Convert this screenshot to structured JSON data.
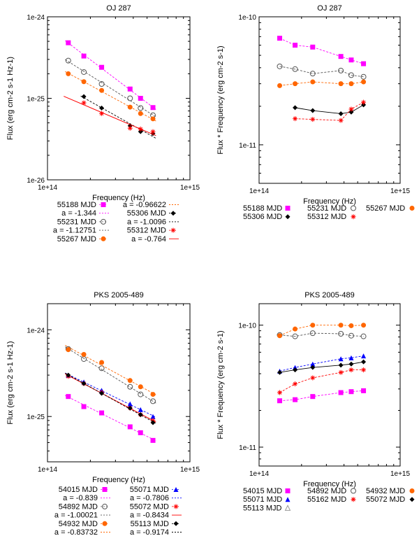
{
  "chart_data": [
    {
      "type": "scatter",
      "title": "OJ 287",
      "xlabel": "Frequency (Hz)",
      "ylabel": "Flux (erg cm-2 s-1 Hz-1)",
      "xlim": [
        100000000000000.0,
        1000000000000000.0
      ],
      "ylim": [
        1e-26,
        1e-24
      ],
      "xtick_labels": [
        "1e+14",
        "1e+15"
      ],
      "ytick_labels": [
        "1e-24",
        "1e-25",
        "1e-26"
      ],
      "series": [
        {
          "name": "55188 MJD",
          "color": "#ff00ff",
          "marker": "square-filled",
          "x": [
            140000000000000.0,
            180000000000000.0,
            240000000000000.0,
            380000000000000.0,
            450000000000000.0,
            550000000000000.0
          ],
          "y": [
            4.8e-25,
            3.3e-25,
            2.4e-25,
            1.3e-25,
            1e-25,
            7.7e-26
          ],
          "fit": "a = -1.344",
          "fit_color": "#ff00ff"
        },
        {
          "name": "55231 MJD",
          "color": "#555555",
          "marker": "circle-open",
          "x": [
            140000000000000.0,
            180000000000000.0,
            240000000000000.0,
            380000000000000.0,
            450000000000000.0,
            550000000000000.0
          ],
          "y": [
            2.9e-25,
            2.1e-25,
            1.5e-25,
            1e-25,
            7.6e-26,
            6.2e-26
          ],
          "fit": "a = -1.12751",
          "fit_color": "#555555"
        },
        {
          "name": "55267 MJD",
          "color": "#ff6600",
          "marker": "circle-filled",
          "x": [
            140000000000000.0,
            180000000000000.0,
            240000000000000.0,
            380000000000000.0,
            450000000000000.0,
            550000000000000.0
          ],
          "y": [
            2e-25,
            1.6e-25,
            1.25e-25,
            7.8e-26,
            6.5e-26,
            5.6e-26
          ],
          "fit": "a = -0.96622",
          "fit_color": "#ff6600"
        },
        {
          "name": "55306 MJD",
          "color": "#000000",
          "marker": "diamond-filled",
          "x": [
            180000000000000.0,
            240000000000000.0,
            380000000000000.0,
            450000000000000.0,
            550000000000000.0
          ],
          "y": [
            1.05e-25,
            7.6e-26,
            4.6e-26,
            3.9e-26,
            3.7e-26
          ],
          "fit": "a = -1.0096",
          "fit_color": "#000000"
        },
        {
          "name": "55312 MJD",
          "color": "#ff0000",
          "marker": "star",
          "x": [
            180000000000000.0,
            240000000000000.0,
            380000000000000.0,
            450000000000000.0,
            550000000000000.0
          ],
          "y": [
            8.8e-26,
            6.5e-26,
            4.3e-26,
            4.2e-26,
            3.9e-26
          ],
          "fit": "a = -0.764",
          "fit_color": "#ff0000"
        }
      ]
    },
    {
      "type": "scatter",
      "title": "OJ 287",
      "xlabel": "Frequency (Hz)",
      "ylabel": "Flux * Frequency (erg cm-2 s-1)",
      "xlim": [
        100000000000000.0,
        1000000000000000.0
      ],
      "ylim": [
        5e-12,
        1e-10
      ],
      "xtick_labels": [
        "1e+14",
        "1e+15"
      ],
      "ytick_labels": [
        "1e-10",
        "1e-11"
      ],
      "series": [
        {
          "name": "55188 MJD",
          "color": "#ff00ff",
          "marker": "square-filled",
          "x": [
            140000000000000.0,
            180000000000000.0,
            240000000000000.0,
            380000000000000.0,
            450000000000000.0,
            550000000000000.0
          ],
          "y": [
            6.8e-11,
            6e-11,
            5.8e-11,
            4.9e-11,
            4.6e-11,
            4.3e-11
          ]
        },
        {
          "name": "55231 MJD",
          "color": "#555555",
          "marker": "circle-open",
          "x": [
            140000000000000.0,
            180000000000000.0,
            240000000000000.0,
            380000000000000.0,
            450000000000000.0,
            550000000000000.0
          ],
          "y": [
            4.1e-11,
            3.9e-11,
            3.6e-11,
            3.8e-11,
            3.5e-11,
            3.4e-11
          ]
        },
        {
          "name": "55267 MJD",
          "color": "#ff6600",
          "marker": "circle-filled",
          "x": [
            140000000000000.0,
            180000000000000.0,
            240000000000000.0,
            380000000000000.0,
            450000000000000.0,
            550000000000000.0
          ],
          "y": [
            2.9e-11,
            3e-11,
            3.1e-11,
            3e-11,
            3e-11,
            3.1e-11
          ]
        },
        {
          "name": "55306 MJD",
          "color": "#000000",
          "marker": "diamond-filled",
          "x": [
            180000000000000.0,
            240000000000000.0,
            380000000000000.0,
            450000000000000.0,
            550000000000000.0
          ],
          "y": [
            1.95e-11,
            1.85e-11,
            1.75e-11,
            1.8e-11,
            2.05e-11
          ]
        },
        {
          "name": "55312 MJD",
          "color": "#ff0000",
          "marker": "star",
          "x": [
            180000000000000.0,
            240000000000000.0,
            380000000000000.0,
            450000000000000.0,
            550000000000000.0
          ],
          "y": [
            1.6e-11,
            1.58e-11,
            1.55e-11,
            1.9e-11,
            2.15e-11
          ]
        }
      ]
    },
    {
      "type": "scatter",
      "title": "PKS 2005-489",
      "xlabel": "Frequency (Hz)",
      "ylabel": "Flux (erg cm-2 s-1 Hz-1)",
      "xlim": [
        100000000000000.0,
        1000000000000000.0
      ],
      "ylim": [
        3e-26,
        2e-24
      ],
      "xtick_labels": [
        "1e+14",
        "1e+15"
      ],
      "ytick_labels": [
        "1e-24",
        "1e-25"
      ],
      "series": [
        {
          "name": "54015 MJD",
          "color": "#ff00ff",
          "marker": "square-filled",
          "x": [
            140000000000000.0,
            180000000000000.0,
            240000000000000.0,
            380000000000000.0,
            450000000000000.0,
            550000000000000.0
          ],
          "y": [
            1.7e-25,
            1.3e-25,
            1.1e-25,
            7.6e-26,
            6.5e-26,
            5.3e-26
          ],
          "fit": "a = -0.839",
          "fit_color": "#ff00ff"
        },
        {
          "name": "54892 MJD",
          "color": "#555555",
          "marker": "circle-open",
          "x": [
            140000000000000.0,
            180000000000000.0,
            240000000000000.0,
            380000000000000.0,
            450000000000000.0,
            550000000000000.0
          ],
          "y": [
            6e-25,
            4.6e-25,
            3.6e-25,
            2.2e-25,
            1.8e-25,
            1.5e-25
          ],
          "fit": "a = -1.00021",
          "fit_color": "#555555"
        },
        {
          "name": "54932 MJD",
          "color": "#ff6600",
          "marker": "circle-filled",
          "x": [
            140000000000000.0,
            180000000000000.0,
            240000000000000.0,
            380000000000000.0,
            450000000000000.0,
            550000000000000.0
          ],
          "y": [
            5.9e-25,
            5.2e-25,
            4.2e-25,
            2.6e-25,
            2.2e-25,
            1.8e-25
          ],
          "fit": "a = -0.83732",
          "fit_color": "#ff6600"
        },
        {
          "name": "55071 MJD",
          "color": "#0000ff",
          "marker": "triangle-filled",
          "x": [
            140000000000000.0,
            180000000000000.0,
            240000000000000.0,
            380000000000000.0,
            450000000000000.0,
            550000000000000.0
          ],
          "y": [
            3e-25,
            2.5e-25,
            2e-25,
            1.4e-25,
            1.2e-25,
            1e-25
          ],
          "fit": "a = -0.7806",
          "fit_color": "#0000ff"
        },
        {
          "name": "55072 MJD",
          "color": "#ff0000",
          "marker": "star",
          "x": [
            140000000000000.0,
            180000000000000.0,
            240000000000000.0,
            380000000000000.0,
            450000000000000.0,
            550000000000000.0
          ],
          "y": [
            2.9e-25,
            2.4e-25,
            1.9e-25,
            1.25e-25,
            1.05e-25,
            9e-26
          ],
          "fit": "a = -0.8434",
          "fit_color": "#ff0000"
        },
        {
          "name": "55113 MJD",
          "color": "#000000",
          "marker": "diamond-filled",
          "x": [
            140000000000000.0,
            180000000000000.0,
            240000000000000.0,
            380000000000000.0,
            450000000000000.0,
            550000000000000.0
          ],
          "y": [
            3e-25,
            2.4e-25,
            1.85e-25,
            1.25e-25,
            1.05e-25,
            8.5e-26
          ],
          "fit": "a = -0.9174",
          "fit_color": "#000000"
        }
      ]
    },
    {
      "type": "scatter",
      "title": "PKS 2005-489",
      "xlabel": "Frequency (Hz)",
      "ylabel": "Flux * Frequency (erg cm-2 s-1)",
      "xlim": [
        100000000000000.0,
        1000000000000000.0
      ],
      "ylim": [
        7e-12,
        1.5e-10
      ],
      "xtick_labels": [
        "1e+14",
        "1e+15"
      ],
      "ytick_labels": [
        "1e-10",
        "1e-11"
      ],
      "series": [
        {
          "name": "54015 MJD",
          "color": "#ff00ff",
          "marker": "square-filled",
          "x": [
            140000000000000.0,
            180000000000000.0,
            240000000000000.0,
            380000000000000.0,
            450000000000000.0,
            550000000000000.0
          ],
          "y": [
            2.4e-11,
            2.45e-11,
            2.6e-11,
            2.8e-11,
            2.85e-11,
            2.9e-11
          ]
        },
        {
          "name": "54892 MJD",
          "color": "#555555",
          "marker": "circle-open",
          "x": [
            140000000000000.0,
            180000000000000.0,
            240000000000000.0,
            380000000000000.0,
            450000000000000.0,
            550000000000000.0
          ],
          "y": [
            8.3e-11,
            8.1e-11,
            8.6e-11,
            8.5e-11,
            8.2e-11,
            8.1e-11
          ]
        },
        {
          "name": "54932 MJD",
          "color": "#ff6600",
          "marker": "circle-filled",
          "x": [
            140000000000000.0,
            180000000000000.0,
            240000000000000.0,
            380000000000000.0,
            450000000000000.0,
            550000000000000.0
          ],
          "y": [
            8.2e-11,
            9.3e-11,
            1e-10,
            1e-10,
            9.9e-11,
            1e-10
          ]
        },
        {
          "name": "55071 MJD",
          "color": "#0000ff",
          "marker": "triangle-filled",
          "x": [
            140000000000000.0,
            180000000000000.0,
            240000000000000.0,
            380000000000000.0,
            450000000000000.0,
            550000000000000.0
          ],
          "y": [
            4.2e-11,
            4.5e-11,
            4.8e-11,
            5.3e-11,
            5.4e-11,
            5.6e-11
          ]
        },
        {
          "name": "55162 MJD",
          "color": "#ff0000",
          "marker": "star",
          "x": [
            140000000000000.0,
            180000000000000.0,
            240000000000000.0,
            380000000000000.0,
            450000000000000.0,
            550000000000000.0
          ],
          "y": [
            2.8e-11,
            3.3e-11,
            3.7e-11,
            4.1e-11,
            4.3e-11,
            4.3e-11
          ]
        },
        {
          "name": "55072 MJD",
          "color": "#000000",
          "marker": "diamond-filled",
          "x": [
            140000000000000.0,
            180000000000000.0,
            240000000000000.0,
            380000000000000.0,
            450000000000000.0,
            550000000000000.0
          ],
          "y": [
            4.1e-11,
            4.3e-11,
            4.5e-11,
            4.7e-11,
            4.8e-11,
            5e-11
          ]
        },
        {
          "name": "55113 MJD",
          "color": "#999999",
          "marker": "triangle-open",
          "x": [],
          "y": []
        }
      ]
    }
  ]
}
